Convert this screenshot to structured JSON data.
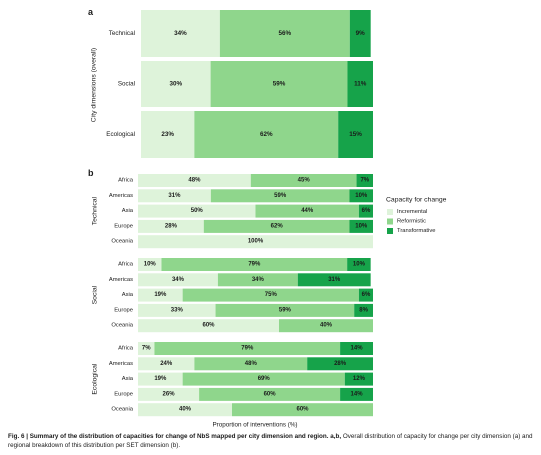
{
  "colors": {
    "incremental": "#def3da",
    "reformistic": "#8fd68c",
    "transformative": "#16a34a"
  },
  "chart_data": [
    {
      "type": "bar",
      "orientation": "horizontal",
      "stacked": true,
      "panel_label": "a",
      "ylabel": "City dimensions (overall)",
      "categories": [
        "Technical",
        "Social",
        "Ecological"
      ],
      "series": [
        {
          "name": "Incremental",
          "values": [
            34,
            30,
            23
          ]
        },
        {
          "name": "Reformistic",
          "values": [
            56,
            59,
            62
          ]
        },
        {
          "name": "Transformative",
          "values": [
            9,
            11,
            15
          ]
        }
      ],
      "data_labels": [
        [
          "34%",
          "56%",
          "9%"
        ],
        [
          "30%",
          "59%",
          "11%"
        ],
        [
          "23%",
          "62%",
          "15%"
        ]
      ],
      "xlim": [
        0,
        100
      ]
    },
    {
      "type": "bar",
      "orientation": "horizontal",
      "stacked": true,
      "panel_label": "b",
      "xlabel": "Proportion of interventions (%)",
      "xlim": [
        0,
        100
      ],
      "legend": {
        "title": "Capacity for change",
        "position": "right",
        "entries": [
          "Incremental",
          "Reformistic",
          "Transformative"
        ]
      },
      "groups": [
        {
          "name": "Technical",
          "regions": [
            "Africa",
            "Americas",
            "Asia",
            "Europe",
            "Oceania"
          ],
          "incremental": [
            48,
            31,
            50,
            28,
            100
          ],
          "reformistic": [
            45,
            59,
            44,
            62,
            0
          ],
          "transformative": [
            7,
            10,
            6,
            10,
            0
          ],
          "labels": [
            [
              "48%",
              "45%",
              "7%"
            ],
            [
              "31%",
              "59%",
              "10%"
            ],
            [
              "50%",
              "44%",
              "6%"
            ],
            [
              "28%",
              "62%",
              "10%"
            ],
            [
              "100%",
              "",
              ""
            ]
          ]
        },
        {
          "name": "Social",
          "regions": [
            "Africa",
            "Americas",
            "Asia",
            "Europe",
            "Oceania"
          ],
          "incremental": [
            10,
            34,
            19,
            33,
            60
          ],
          "reformistic": [
            79,
            34,
            75,
            59,
            40
          ],
          "transformative": [
            10,
            31,
            6,
            8,
            0
          ],
          "labels": [
            [
              "10%",
              "79%",
              "10%"
            ],
            [
              "34%",
              "34%",
              "31%"
            ],
            [
              "19%",
              "75%",
              "6%"
            ],
            [
              "33%",
              "59%",
              "8%"
            ],
            [
              "60%",
              "40%",
              ""
            ]
          ]
        },
        {
          "name": "Ecological",
          "regions": [
            "Africa",
            "Americas",
            "Asia",
            "Europe",
            "Oceania"
          ],
          "incremental": [
            7,
            24,
            19,
            26,
            40
          ],
          "reformistic": [
            79,
            48,
            69,
            60,
            60
          ],
          "transformative": [
            14,
            28,
            12,
            14,
            0
          ],
          "labels": [
            [
              "7%",
              "79%",
              "14%"
            ],
            [
              "24%",
              "48%",
              "28%"
            ],
            [
              "19%",
              "69%",
              "12%"
            ],
            [
              "26%",
              "60%",
              "14%"
            ],
            [
              "40%",
              "60%",
              ""
            ]
          ]
        }
      ]
    }
  ],
  "caption": {
    "bold": "Fig. 6 | Summary of the distribution of capacities for change of NbS mapped per city dimension and region. a,b,",
    "text": " Overall distribution of capacity for change per city dimension (a) and regional breakdown of this distribution per SET dimension (b)."
  }
}
